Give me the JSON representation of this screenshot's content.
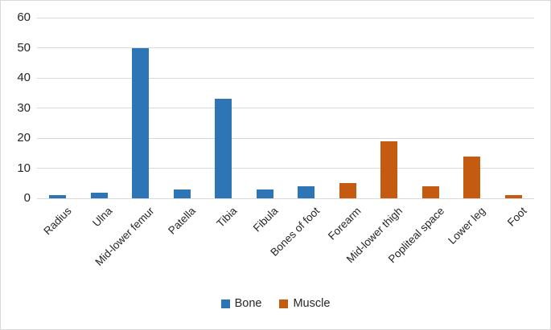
{
  "figure": {
    "background_color": "#ffffff",
    "border_color": "#d8d8d8",
    "text_color": "#262626"
  },
  "chart_data": {
    "type": "bar",
    "title": "",
    "xlabel": "",
    "ylabel": "",
    "categories": [
      "Radius",
      "Ulna",
      "Mid-lower femur",
      "Patella",
      "Tibia",
      "Fibula",
      "Bones of foot",
      "Forearm",
      "Mid-lower thigh",
      "Popliteal space",
      "Lower leg",
      "Foot"
    ],
    "series": [
      {
        "name": "Bone",
        "color": "#2E75B6",
        "values": [
          1,
          2,
          50,
          3,
          33,
          3,
          4,
          null,
          null,
          null,
          null,
          null
        ]
      },
      {
        "name": "Muscle",
        "color": "#C55A11",
        "values": [
          null,
          null,
          null,
          null,
          null,
          null,
          null,
          5,
          19,
          4,
          14,
          1
        ]
      }
    ],
    "ylim": [
      0,
      60
    ],
    "ytick_step": 10,
    "yticks": [
      0,
      10,
      20,
      30,
      40,
      50,
      60
    ],
    "grid": true,
    "gridline_color": "#d9d9d9",
    "legend_position": "bottom",
    "legend_labels": [
      "Bone",
      "Muscle"
    ]
  }
}
